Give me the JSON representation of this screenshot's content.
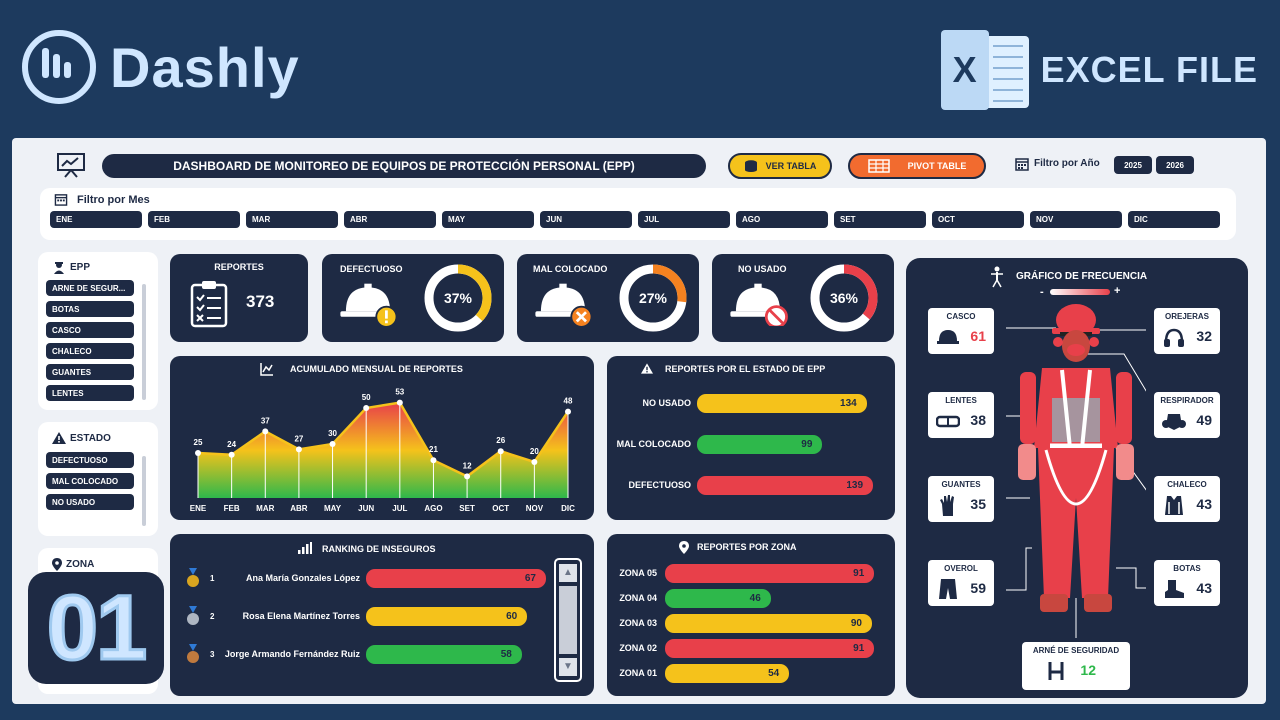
{
  "brand": {
    "name": "Dashly"
  },
  "excel": {
    "letter": "X",
    "label": "EXCEL FILE"
  },
  "badge": "01",
  "header": {
    "title": "DASHBOARD DE MONITOREO DE EQUIPOS DE PROTECCIÓN PERSONAL (EPP)",
    "btn_table": "VER TABLA",
    "btn_pivot": "PIVOT TABLE",
    "year_filter_label": "Filtro por Año",
    "years": [
      "2025",
      "2026"
    ]
  },
  "month_filter": {
    "label": "Filtro por Mes",
    "months": [
      "ENE",
      "FEB",
      "MAR",
      "ABR",
      "MAY",
      "JUN",
      "JUL",
      "AGO",
      "SET",
      "OCT",
      "NOV",
      "DIC"
    ]
  },
  "sidebar": {
    "epp": {
      "label": "EPP",
      "items": [
        "ARNE DE SEGUR...",
        "BOTAS",
        "CASCO",
        "CHALECO",
        "GUANTES",
        "LENTES"
      ]
    },
    "estado": {
      "label": "ESTADO",
      "items": [
        "DEFECTUOSO",
        "MAL COLOCADO",
        "NO USADO"
      ]
    },
    "zona": {
      "label": "ZONA"
    }
  },
  "kpis": {
    "reportes": {
      "label": "REPORTES",
      "value": "373"
    },
    "defectuoso": {
      "label": "DEFECTUOSO",
      "pct": "37%",
      "fraction": 0.37,
      "color": "#f5c21b"
    },
    "mal_colocado": {
      "label": "MAL COLOCADO",
      "pct": "27%",
      "fraction": 0.27,
      "color": "#f58220"
    },
    "no_usado": {
      "label": "NO USADO",
      "pct": "36%",
      "fraction": 0.36,
      "color": "#e8404a"
    }
  },
  "acumulado": {
    "title": "ACUMULADO MENSUAL DE REPORTES"
  },
  "estado_chart": {
    "title": "REPORTES POR EL ESTADO DE EPP"
  },
  "ranking": {
    "title": "RANKING DE INSEGUROS",
    "items": [
      {
        "rank": "1",
        "name": "Ana María Gonzales López",
        "value": 67,
        "color": "#e8404a"
      },
      {
        "rank": "2",
        "name": "Rosa Elena Martínez Torres",
        "value": 60,
        "color": "#f5c21b"
      },
      {
        "rank": "3",
        "name": "Jorge Armando Fernández Ruiz",
        "value": 58,
        "color": "#2eb84b"
      }
    ]
  },
  "zona_chart": {
    "title": "REPORTES POR ZONA"
  },
  "frecuencia": {
    "title": "GRÁFICO DE FRECUENCIA",
    "minus": "-",
    "plus": "+",
    "items": {
      "casco": {
        "label": "CASCO",
        "value": "61",
        "color": "#e8404a"
      },
      "orejeras": {
        "label": "OREJERAS",
        "value": "32",
        "color": "#1e2a44"
      },
      "lentes": {
        "label": "LENTES",
        "value": "38",
        "color": "#1e2a44"
      },
      "respirador": {
        "label": "RESPIRADOR",
        "value": "49",
        "color": "#1e2a44"
      },
      "guantes": {
        "label": "GUANTES",
        "value": "35",
        "color": "#1e2a44"
      },
      "chaleco": {
        "label": "CHALECO",
        "value": "43",
        "color": "#1e2a44"
      },
      "overol": {
        "label": "OVEROL",
        "value": "59",
        "color": "#1e2a44"
      },
      "botas": {
        "label": "BOTAS",
        "value": "43",
        "color": "#1e2a44"
      },
      "arnes": {
        "label": "ARNÉ DE SEGURIDAD",
        "value": "12",
        "color": "#2eb84b"
      }
    }
  },
  "chart_data": [
    {
      "type": "area",
      "title": "ACUMULADO MENSUAL DE REPORTES",
      "categories": [
        "ENE",
        "FEB",
        "MAR",
        "ABR",
        "MAY",
        "JUN",
        "JUL",
        "AGO",
        "SET",
        "OCT",
        "NOV",
        "DIC"
      ],
      "values": [
        25,
        24,
        37,
        27,
        30,
        50,
        53,
        21,
        12,
        26,
        20,
        48
      ],
      "ylim": [
        0,
        60
      ],
      "grid": false
    },
    {
      "type": "bar",
      "orientation": "horizontal",
      "title": "REPORTES POR EL ESTADO DE EPP",
      "categories": [
        "NO USADO",
        "MAL COLOCADO",
        "DEFECTUOSO"
      ],
      "values": [
        134,
        99,
        139
      ],
      "colors": [
        "#f5c21b",
        "#2eb84b",
        "#e8404a"
      ],
      "xlim": [
        0,
        150
      ]
    },
    {
      "type": "bar",
      "orientation": "horizontal",
      "title": "REPORTES POR ZONA",
      "categories": [
        "ZONA 05",
        "ZONA 04",
        "ZONA 03",
        "ZONA 02",
        "ZONA 01"
      ],
      "values": [
        91,
        46,
        90,
        91,
        54
      ],
      "colors": [
        "#e8404a",
        "#2eb84b",
        "#f5c21b",
        "#e8404a",
        "#f5c21b"
      ],
      "xlim": [
        0,
        100
      ]
    }
  ]
}
